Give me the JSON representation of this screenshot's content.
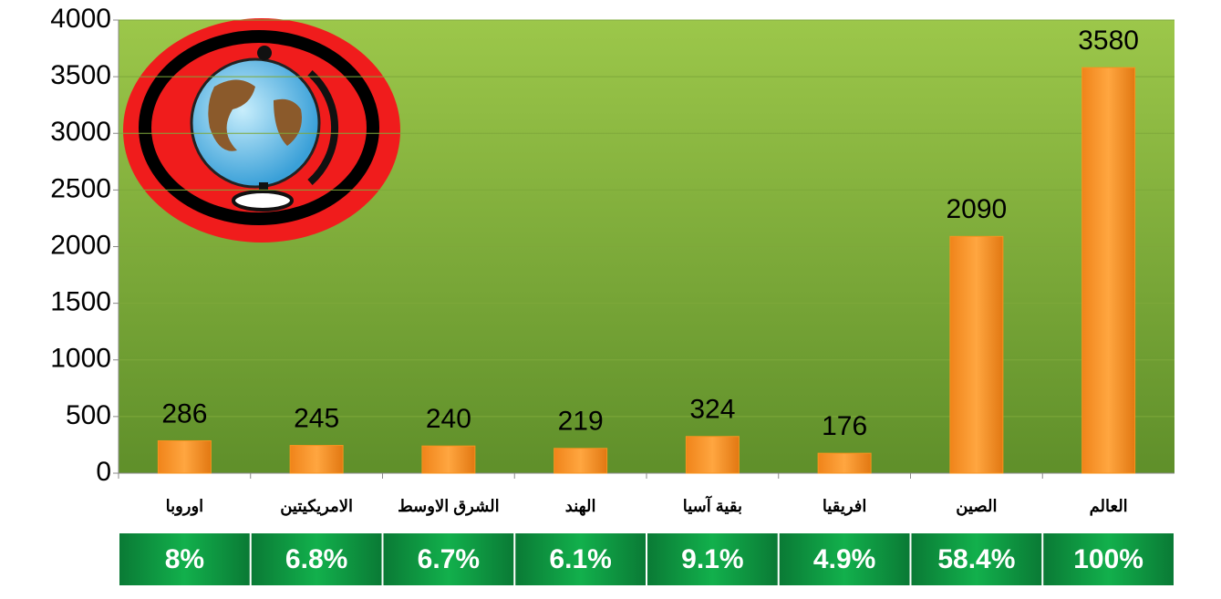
{
  "chart_data": {
    "type": "bar",
    "categories": [
      "اوروبا",
      "الامريكيتين",
      "الشرق الاوسط",
      "الهند",
      "بقية آسيا",
      "افريقيا",
      "الصين",
      "العالم"
    ],
    "values": [
      286,
      245,
      240,
      219,
      324,
      176,
      2090,
      3580
    ],
    "color": "#f7931e",
    "ylim": [
      0,
      4000
    ],
    "yticks": [
      0,
      500,
      1000,
      1500,
      2000,
      2500,
      3000,
      3500,
      4000
    ],
    "grid": true,
    "shares": [
      "8%",
      "6.8%",
      "6.7%",
      "6.1%",
      "9.1%",
      "4.9%",
      "58.4%",
      "100%"
    ]
  }
}
